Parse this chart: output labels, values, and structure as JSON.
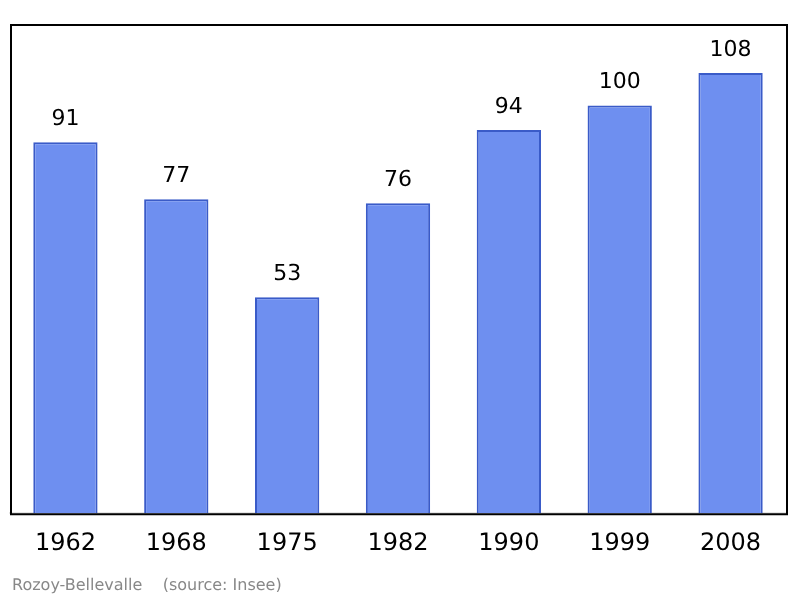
{
  "chart_data": {
    "type": "bar",
    "categories": [
      "1962",
      "1968",
      "1975",
      "1982",
      "1990",
      "1999",
      "2008"
    ],
    "values": [
      91,
      77,
      53,
      76,
      94,
      100,
      108
    ],
    "color": "#6e8ff0",
    "ylim": [
      0,
      120
    ],
    "data_labels": true,
    "grid": false,
    "legend": false,
    "tick_labels": "x",
    "annotations": [
      "Rozoy-Bellevalle    (source: Insee)"
    ]
  }
}
